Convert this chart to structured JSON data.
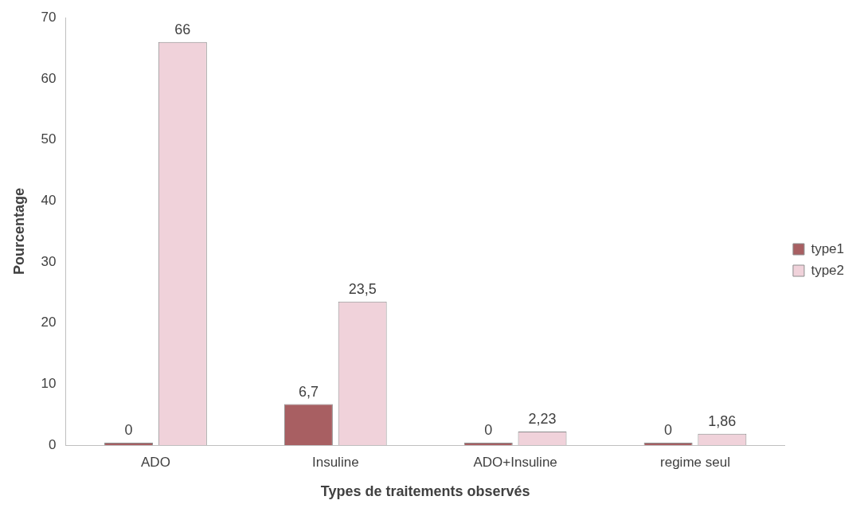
{
  "chart_data": {
    "type": "bar",
    "xlabel": "Types de traitements observés",
    "ylabel": "Pourcentage",
    "categories": [
      "ADO",
      "Insuline",
      "ADO+Insuline",
      "regime seul"
    ],
    "series": [
      {
        "name": "type1",
        "color": "#a85f62",
        "values": [
          0,
          6.7,
          0,
          0
        ],
        "value_labels": [
          "0",
          "6,7",
          "0",
          "0"
        ]
      },
      {
        "name": "type2",
        "color": "#f0d2da",
        "values": [
          66,
          23.5,
          2.23,
          1.86
        ],
        "value_labels": [
          "66",
          "23,5",
          "2,23",
          "1,86"
        ]
      }
    ],
    "ylim": [
      0,
      70
    ],
    "yticks": [
      0,
      10,
      20,
      30,
      40,
      50,
      60,
      70
    ],
    "grid": false,
    "legend": "right"
  }
}
